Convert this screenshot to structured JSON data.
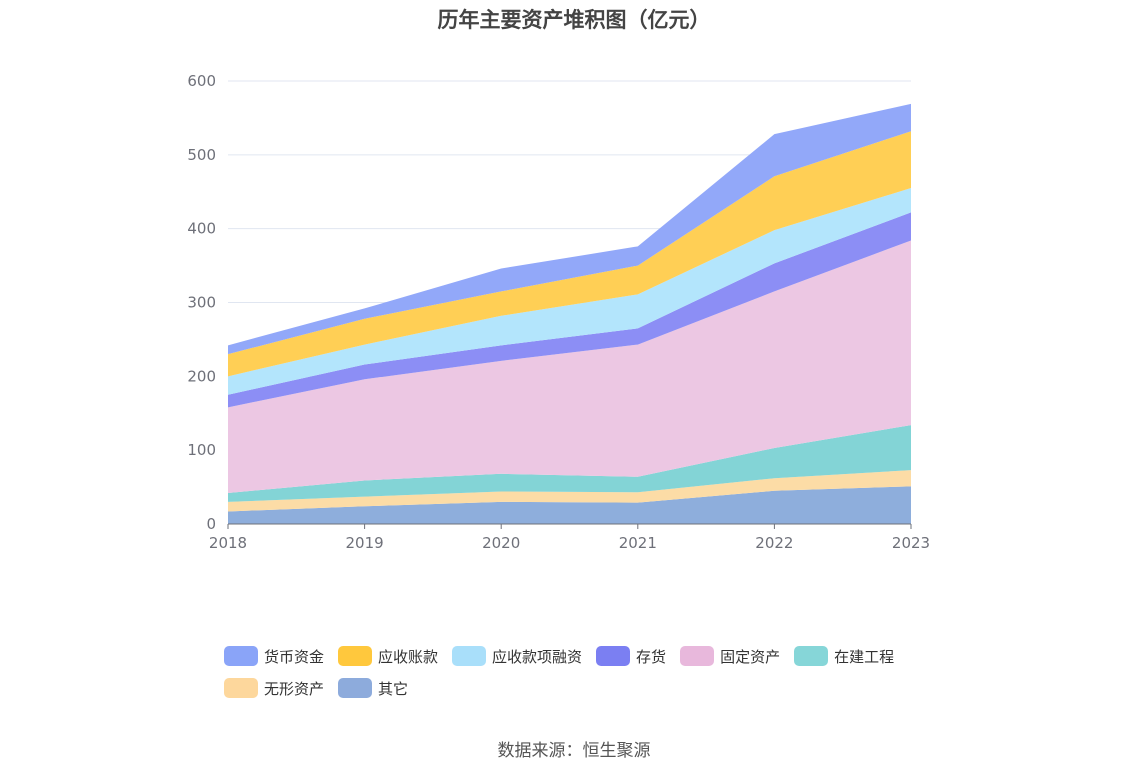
{
  "page": {
    "title": "历年主要资产堆积图（亿元）",
    "source": "数据来源：恒生聚源"
  },
  "chart_data": {
    "type": "area",
    "stacked": true,
    "title": "历年主要资产堆积图（亿元）",
    "xlabel": "",
    "ylabel": "",
    "ylim": [
      0,
      600
    ],
    "y_ticks": [
      "0",
      "100",
      "200",
      "300",
      "400",
      "500",
      "600"
    ],
    "categories": [
      "2018",
      "2019",
      "2020",
      "2021",
      "2022",
      "2023"
    ],
    "grid": true,
    "legend_position": "bottom",
    "series": [
      {
        "name": "其它",
        "color": "#8eaedc",
        "values": [
          17,
          24,
          30,
          29,
          45,
          51
        ]
      },
      {
        "name": "无形资产",
        "color": "#fcdca6",
        "values": [
          13,
          13,
          14,
          14,
          17,
          22
        ]
      },
      {
        "name": "在建工程",
        "color": "#83d4d6",
        "values": [
          12,
          22,
          24,
          21,
          41,
          61
        ]
      },
      {
        "name": "固定资产",
        "color": "#ecc7e3",
        "values": [
          116,
          137,
          153,
          179,
          212,
          250
        ]
      },
      {
        "name": "存货",
        "color": "#8c8ef5",
        "values": [
          17,
          20,
          21,
          22,
          38,
          38
        ]
      },
      {
        "name": "应收款项融资",
        "color": "#b3e5fc",
        "values": [
          25,
          27,
          40,
          46,
          45,
          33
        ]
      },
      {
        "name": "应收账款",
        "color": "#ffcf55",
        "values": [
          30,
          35,
          33,
          39,
          73,
          77
        ]
      },
      {
        "name": "货币资金",
        "color": "#92a8f9",
        "values": [
          12,
          14,
          31,
          26,
          57,
          37
        ]
      }
    ]
  },
  "legend": {
    "rows": [
      [
        {
          "label": "货币资金",
          "color": "#8aa4f8"
        },
        {
          "label": "应收账款",
          "color": "#ffc83d"
        },
        {
          "label": "应收款项融资",
          "color": "#a9dffa"
        },
        {
          "label": "存货",
          "color": "#7b7ff2"
        },
        {
          "label": "固定资产",
          "color": "#e8b8dc"
        },
        {
          "label": "在建工程",
          "color": "#86d6d8"
        }
      ],
      [
        {
          "label": "无形资产",
          "color": "#fdd79c"
        },
        {
          "label": "其它",
          "color": "#8dabdc"
        }
      ]
    ]
  }
}
